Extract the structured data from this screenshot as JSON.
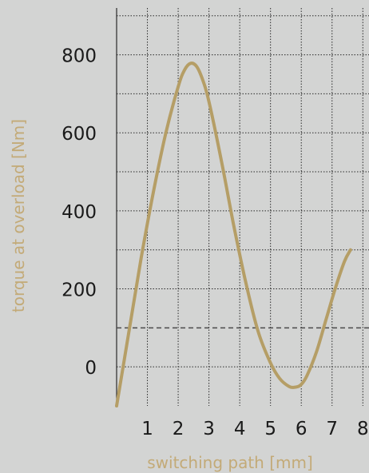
{
  "chart_data": {
    "type": "line",
    "xlabel": "switching path [mm]",
    "ylabel": "torque at overload [Nm]",
    "x_ticks": [
      1,
      2,
      3,
      4,
      5,
      6,
      7,
      8
    ],
    "y_ticks": [
      0,
      200,
      400,
      600,
      800
    ],
    "xlim": [
      0,
      8.2
    ],
    "ylim": [
      -100,
      920
    ],
    "grid": true,
    "reference_line_y": 100,
    "series": [
      {
        "color": "#b59e66",
        "x": [
          0,
          0.4,
          0.8,
          1.2,
          1.6,
          2.0,
          2.2,
          2.4,
          2.6,
          2.8,
          3.0,
          3.4,
          3.8,
          4.2,
          4.6,
          5.0,
          5.3,
          5.6,
          5.8,
          6.0,
          6.2,
          6.5,
          6.8,
          7.1,
          7.4,
          7.6
        ],
        "y": [
          -100,
          90,
          280,
          450,
          600,
          718,
          760,
          778,
          770,
          735,
          680,
          530,
          365,
          215,
          90,
          10,
          -30,
          -50,
          -52,
          -45,
          -20,
          40,
          120,
          200,
          270,
          300
        ]
      }
    ]
  }
}
